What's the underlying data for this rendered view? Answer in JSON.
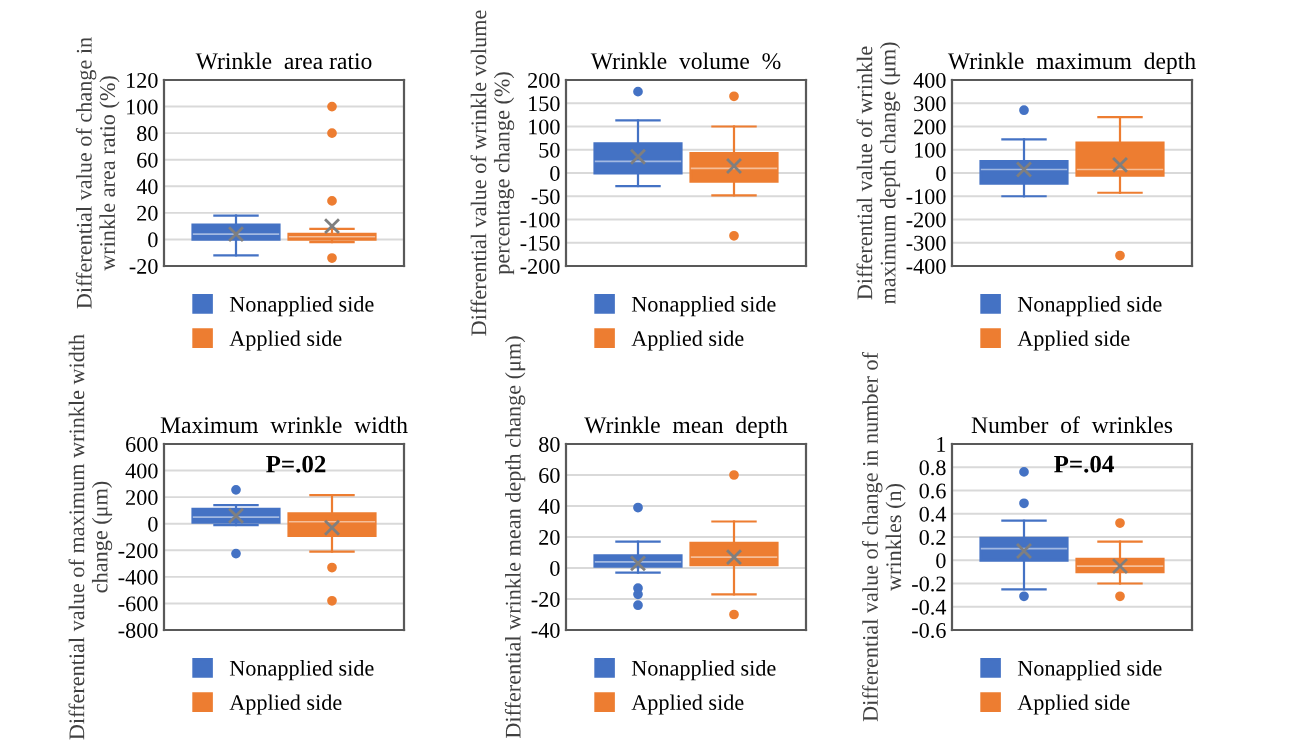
{
  "chart_data": [
    {
      "type": "box",
      "title": "Wrinkle  area ratio",
      "ylabel": "Differential value of change in wrinkle area ratio (%)",
      "categories": [
        null
      ],
      "ylim": [
        -20,
        120
      ],
      "yticks": [
        -20,
        0,
        20,
        40,
        60,
        80,
        100,
        120
      ],
      "grid": "y",
      "legend": "bottom",
      "tick_labels": "y",
      "series": [
        {
          "name": "Nonapplied side",
          "color": "#4472c4",
          "boxes": [
            {
              "low": -12,
              "q1": 0,
              "median": 4,
              "q3": 11,
              "high": 18,
              "mean": 4
            }
          ]
        },
        {
          "name": "Applied side",
          "color": "#ed7d31",
          "boxes": [
            {
              "low": -2,
              "q1": 0,
              "median": 2,
              "q3": 4,
              "high": 8,
              "mean": 10,
              "outliers": [
                100,
                80,
                29,
                -14
              ]
            }
          ]
        }
      ]
    },
    {
      "type": "box",
      "title": "Wrinkle  volume  %",
      "ylabel": "Differential value of wrinkle volume percentage change (%)",
      "categories": [
        null
      ],
      "ylim": [
        -200,
        200
      ],
      "yticks": [
        -200,
        -150,
        -100,
        -50,
        0,
        50,
        100,
        150,
        200
      ],
      "grid": "y",
      "legend": "bottom",
      "tick_labels": "y",
      "series": [
        {
          "name": "Nonapplied side",
          "color": "#4472c4",
          "boxes": [
            {
              "low": -28,
              "q1": 0,
              "median": 25,
              "q3": 63,
              "high": 113,
              "mean": 35,
              "outliers": [
                175
              ]
            }
          ]
        },
        {
          "name": "Applied side",
          "color": "#ed7d31",
          "boxes": [
            {
              "low": -48,
              "q1": -18,
              "median": 10,
              "q3": 42,
              "high": 100,
              "mean": 15,
              "outliers": [
                165,
                -135
              ]
            }
          ]
        }
      ]
    },
    {
      "type": "box",
      "title": "Wrinkle  maximum  depth",
      "ylabel": "Differential value of wrinkle maximum depth change (μm)",
      "categories": [
        null
      ],
      "ylim": [
        -400,
        400
      ],
      "yticks": [
        -400,
        -300,
        -200,
        -100,
        0,
        100,
        200,
        300,
        400
      ],
      "grid": "y",
      "legend": "bottom",
      "tick_labels": "y",
      "series": [
        {
          "name": "Nonapplied side",
          "color": "#4472c4",
          "boxes": [
            {
              "low": -100,
              "q1": -45,
              "median": 15,
              "q3": 50,
              "high": 145,
              "mean": 15,
              "outliers": [
                270
              ]
            }
          ]
        },
        {
          "name": "Applied side",
          "color": "#ed7d31",
          "boxes": [
            {
              "low": -85,
              "q1": -10,
              "median": 15,
              "q3": 130,
              "high": 240,
              "mean": 35,
              "outliers": [
                -355
              ]
            }
          ]
        }
      ]
    },
    {
      "type": "box",
      "title": "Maximum  wrinkle  width",
      "ylabel": "Differential value of maximum wrinkle width change (μm)",
      "categories": [
        null
      ],
      "ylim": [
        -800,
        600
      ],
      "yticks": [
        -800,
        -600,
        -400,
        -200,
        0,
        200,
        400,
        600
      ],
      "grid": "y",
      "legend": "bottom",
      "tick_labels": "y",
      "annotations": [
        "P=.02"
      ],
      "series": [
        {
          "name": "Nonapplied side",
          "color": "#4472c4",
          "boxes": [
            {
              "low": -10,
              "q1": 10,
              "median": 50,
              "q3": 110,
              "high": 140,
              "mean": 60,
              "outliers": [
                255,
                -225
              ]
            }
          ]
        },
        {
          "name": "Applied side",
          "color": "#ed7d31",
          "boxes": [
            {
              "low": -210,
              "q1": -90,
              "median": 15,
              "q3": 75,
              "high": 215,
              "mean": -30,
              "outliers": [
                -330,
                -580
              ]
            }
          ]
        }
      ]
    },
    {
      "type": "box",
      "title": "Wrinkle  mean  depth",
      "ylabel": "Differential wrinkle mean depth change (μm)",
      "categories": [
        null
      ],
      "ylim": [
        -40,
        80
      ],
      "yticks": [
        -40,
        -20,
        0,
        20,
        40,
        60,
        80
      ],
      "grid": "y",
      "legend": "bottom",
      "tick_labels": "y",
      "series": [
        {
          "name": "Nonapplied side",
          "color": "#4472c4",
          "boxes": [
            {
              "low": -3,
              "q1": 1,
              "median": 4,
              "q3": 8,
              "high": 17,
              "mean": 3,
              "outliers": [
                39,
                -13,
                -17,
                -24
              ]
            }
          ]
        },
        {
          "name": "Applied side",
          "color": "#ed7d31",
          "boxes": [
            {
              "low": -17,
              "q1": 2,
              "median": 7,
              "q3": 16,
              "high": 30,
              "mean": 7,
              "outliers": [
                60,
                -30
              ]
            }
          ]
        }
      ]
    },
    {
      "type": "box",
      "title": "Number  of  wrinkles",
      "ylabel": "Differential value of change in number of wrinkles (n)",
      "categories": [
        null
      ],
      "ylim": [
        -0.6,
        1
      ],
      "yticks": [
        -0.6,
        -0.4,
        -0.2,
        0,
        0.2,
        0.4,
        0.6,
        0.8,
        1
      ],
      "grid": "y",
      "legend": "bottom",
      "tick_labels": "y",
      "annotations": [
        "P=.04"
      ],
      "series": [
        {
          "name": "Nonapplied side",
          "color": "#4472c4",
          "boxes": [
            {
              "low": -0.25,
              "q1": 0,
              "median": 0.1,
              "q3": 0.19,
              "high": 0.34,
              "mean": 0.08,
              "outliers": [
                0.76,
                0.49,
                -0.31
              ]
            }
          ]
        },
        {
          "name": "Applied side",
          "color": "#ed7d31",
          "boxes": [
            {
              "low": -0.2,
              "q1": -0.1,
              "median": -0.05,
              "q3": 0.01,
              "high": 0.16,
              "mean": -0.05,
              "outliers": [
                0.32,
                -0.31
              ]
            }
          ]
        }
      ]
    }
  ]
}
